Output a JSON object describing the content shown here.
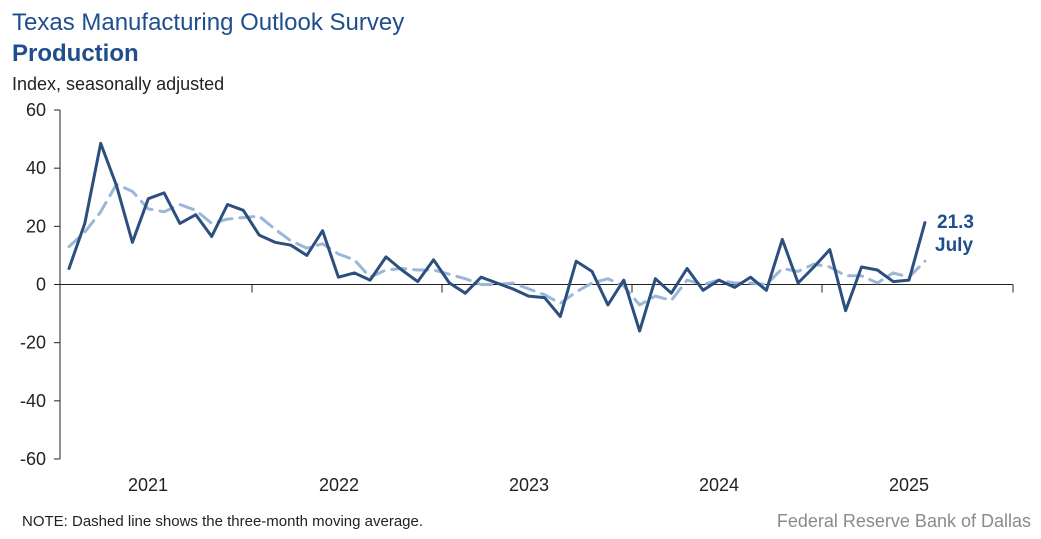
{
  "header": {
    "title": "Texas Manufacturing Outlook Survey",
    "subtitle": "Production",
    "units": "Index, seasonally adjusted"
  },
  "footer": {
    "note": "NOTE: Dashed line shows the three-month  moving average.",
    "source": "Federal Reserve Bank of Dallas"
  },
  "colors": {
    "line": "#2b4f7e",
    "moving_average": "#9cb6d9",
    "text_accent": "#1f4e8c"
  },
  "chart_data": {
    "type": "line",
    "title": "Texas Manufacturing Outlook Survey",
    "subtitle": "Production",
    "ylabel": "Index, seasonally adjusted",
    "xlabel": "",
    "ylim": [
      -60,
      60
    ],
    "yticks": [
      "60",
      "40",
      "20",
      "0",
      "-20",
      "-40",
      "-60"
    ],
    "xtick_labels": [
      "2021",
      "2022",
      "2023",
      "2024",
      "2025"
    ],
    "x_start": "2020-08",
    "x_end": "2025-07",
    "series": [
      {
        "name": "Production index",
        "style": "solid",
        "values": [
          5.5,
          21.0,
          48.5,
          34.0,
          14.5,
          29.5,
          31.5,
          21.0,
          24.0,
          16.5,
          27.5,
          25.5,
          17.0,
          14.5,
          13.5,
          10.0,
          18.5,
          2.5,
          4.0,
          1.5,
          9.5,
          5.0,
          1.0,
          8.5,
          0.5,
          -3.0,
          2.5,
          0.5,
          -1.5,
          -4.0,
          -4.5,
          -11.0,
          8.0,
          4.5,
          -7.0,
          1.5,
          -16.0,
          2.0,
          -3.0,
          5.5,
          -2.0,
          1.5,
          -1.0,
          2.5,
          -2.0,
          15.5,
          0.5,
          6.0,
          12.0,
          -9.0,
          6.0,
          5.0,
          1.0,
          1.5,
          21.3
        ]
      },
      {
        "name": "Three-month moving average",
        "style": "dashed",
        "values": [
          13.0,
          18.0,
          25.0,
          34.5,
          32.0,
          26.0,
          25.0,
          27.5,
          25.5,
          21.0,
          22.5,
          23.0,
          23.5,
          19.0,
          15.0,
          12.5,
          14.0,
          10.5,
          8.5,
          2.5,
          5.0,
          5.5,
          5.0,
          5.0,
          3.5,
          2.0,
          0.0,
          0.0,
          0.5,
          -1.5,
          -3.5,
          -6.5,
          -2.5,
          0.5,
          2.0,
          -0.5,
          -7.0,
          -4.0,
          -5.5,
          1.5,
          0.0,
          1.5,
          0.5,
          0.5,
          0.0,
          5.5,
          4.5,
          7.0,
          6.0,
          3.0,
          3.0,
          0.5,
          4.0,
          2.5,
          8.0
        ]
      }
    ],
    "annotation": {
      "value": "21.3",
      "label": "July"
    }
  }
}
